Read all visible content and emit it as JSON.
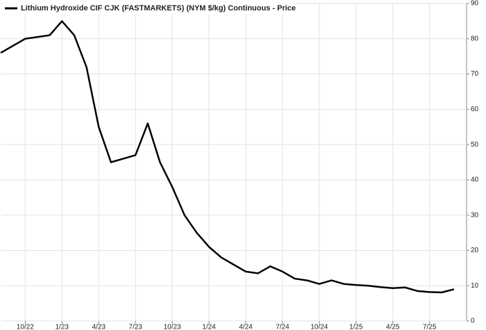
{
  "chart_data": {
    "type": "line",
    "categories": [
      null,
      null,
      "10/22",
      null,
      null,
      "1/23",
      null,
      null,
      "4/23",
      null,
      null,
      "7/23",
      null,
      null,
      "10/23",
      null,
      null,
      "1/24",
      null,
      null,
      "4/24",
      null,
      null,
      "7/24",
      null,
      null,
      "10/24",
      null,
      null,
      "1/25",
      null,
      null,
      "4/25",
      null,
      null,
      "7/25",
      null,
      null
    ],
    "series": [
      {
        "name": "Lithium Hydroxide CIF CJK (FASTMARKETS) (NYM $/kg) Continuous - Price",
        "color": "#000000",
        "values": [
          76,
          78,
          80,
          80.5,
          81,
          85,
          81,
          72,
          55,
          45,
          46,
          47,
          56,
          45,
          38,
          30,
          25,
          21,
          18,
          16,
          14,
          13.5,
          15.5,
          14,
          12,
          11.5,
          10.5,
          11.5,
          10.5,
          10.2,
          10,
          9.6,
          9.3,
          9.5,
          8.5,
          8.2,
          8.1,
          9
        ]
      }
    ],
    "ylim": [
      0,
      90
    ],
    "yticks": [
      0,
      10,
      20,
      30,
      40,
      50,
      60,
      70,
      80,
      90
    ],
    "grid": true
  }
}
